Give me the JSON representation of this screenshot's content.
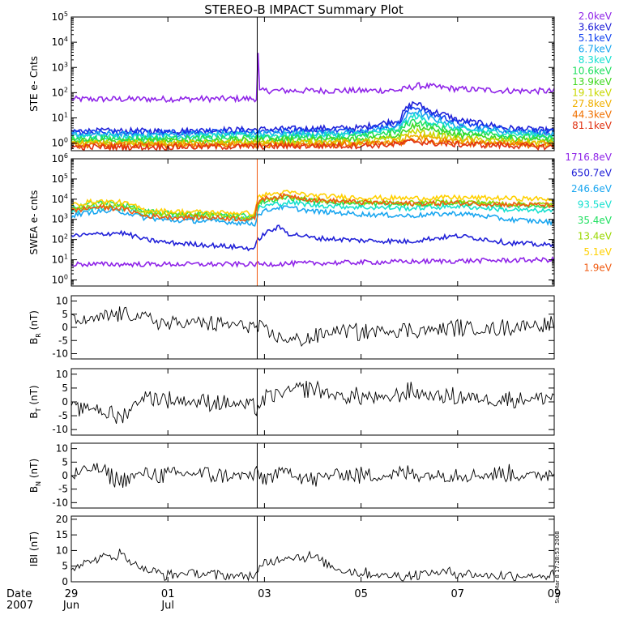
{
  "title": "STEREO-B IMPACT Summary Plot",
  "stamp": "Sun Mar  8 17:28:53 2008",
  "time_axis": {
    "date_label": "Date",
    "year_label": "2007",
    "ticks": [
      {
        "day": 29,
        "label": "29",
        "sub": "Jun"
      },
      {
        "day": 31,
        "label": "01",
        "sub": "Jul"
      },
      {
        "day": 33,
        "label": "03",
        "sub": ""
      },
      {
        "day": 35,
        "label": "05",
        "sub": ""
      },
      {
        "day": 37,
        "label": "07",
        "sub": ""
      },
      {
        "day": 39,
        "label": "09",
        "sub": ""
      }
    ],
    "range": [
      29,
      39
    ]
  },
  "chart_data": [
    {
      "type": "line",
      "ylabel": "STE e- Cnts",
      "yscale": "log",
      "ylim": [
        0.5,
        100000
      ],
      "yticks": [
        {
          "v": 1,
          "label": "10^0"
        },
        {
          "v": 10,
          "label": "10^1"
        },
        {
          "v": 100,
          "label": "10^2"
        },
        {
          "v": 1000,
          "label": "10^3"
        },
        {
          "v": 10000,
          "label": "10^4"
        },
        {
          "v": 100000,
          "label": "10^5"
        }
      ],
      "series": [
        {
          "name": "2.0keV",
          "color": "#8f24e8",
          "x": [
            29,
            31,
            32.85,
            32.86,
            32.9,
            33,
            35,
            35.8,
            36.2,
            37,
            38,
            39
          ],
          "y": [
            55,
            56,
            58,
            4000,
            110,
            120,
            120,
            125,
            190,
            140,
            120,
            115
          ]
        },
        {
          "name": "3.6keV",
          "color": "#2020d8",
          "x": [
            29,
            31,
            33,
            35,
            35.8,
            36.1,
            36.4,
            37,
            38,
            39
          ],
          "y": [
            3,
            3,
            3.5,
            4,
            8,
            40,
            20,
            8,
            4,
            3
          ]
        },
        {
          "name": "5.1keV",
          "color": "#1040f0",
          "x": [
            29,
            31,
            33,
            35,
            35.8,
            36.1,
            36.4,
            37,
            38,
            39
          ],
          "y": [
            2.6,
            2.6,
            3,
            3.2,
            6,
            28,
            15,
            6,
            3.5,
            2.6
          ]
        },
        {
          "name": "6.7keV",
          "color": "#19a6f0",
          "x": [
            29,
            31,
            33,
            35,
            35.8,
            36.1,
            36.4,
            37,
            38,
            39
          ],
          "y": [
            2.2,
            2.2,
            2.4,
            2.6,
            4.5,
            18,
            10,
            4.5,
            3,
            2.2
          ]
        },
        {
          "name": "8.3keV",
          "color": "#16e0d0",
          "x": [
            29,
            31,
            33,
            35,
            35.8,
            36.1,
            36.4,
            37,
            38,
            39
          ],
          "y": [
            1.8,
            1.8,
            2,
            2.2,
            3.5,
            12,
            7,
            3.5,
            2.5,
            1.8
          ]
        },
        {
          "name": "10.6keV",
          "color": "#20e060",
          "x": [
            29,
            31,
            33,
            35,
            35.8,
            36.1,
            36.4,
            37,
            38,
            39
          ],
          "y": [
            1.5,
            1.5,
            1.6,
            1.8,
            3,
            8,
            5,
            2.8,
            2,
            1.5
          ]
        },
        {
          "name": "13.9keV",
          "color": "#40d820",
          "x": [
            29,
            31,
            33,
            35,
            35.8,
            36.1,
            36.4,
            37,
            38,
            39
          ],
          "y": [
            1.2,
            1.2,
            1.3,
            1.4,
            2.2,
            5,
            3.5,
            2,
            1.6,
            1.2
          ]
        },
        {
          "name": "19.1keV",
          "color": "#c8d800",
          "x": [
            29,
            31,
            33,
            35,
            35.8,
            36.1,
            36.4,
            37,
            38,
            39
          ],
          "y": [
            1,
            1,
            1.05,
            1.1,
            1.6,
            3,
            2.2,
            1.5,
            1.2,
            1
          ]
        },
        {
          "name": "27.8keV",
          "color": "#f0b000",
          "x": [
            29,
            31,
            33,
            35,
            35.8,
            36.1,
            36.4,
            37,
            38,
            39
          ],
          "y": [
            0.9,
            0.9,
            0.95,
            1,
            1.2,
            2,
            1.6,
            1.2,
            1,
            0.9
          ]
        },
        {
          "name": "44.3keV",
          "color": "#f07000",
          "x": [
            29,
            31,
            33,
            35,
            35.8,
            36.1,
            36.4,
            37,
            38,
            39
          ],
          "y": [
            0.8,
            0.8,
            0.85,
            0.9,
            1,
            1.4,
            1.2,
            1,
            0.9,
            0.8
          ]
        },
        {
          "name": "81.1keV",
          "color": "#e03010",
          "x": [
            29,
            31,
            33,
            35,
            35.8,
            36.1,
            36.4,
            37,
            38,
            39
          ],
          "y": [
            0.7,
            0.7,
            0.75,
            0.8,
            0.9,
            1.2,
            1,
            0.9,
            0.8,
            0.7
          ]
        }
      ]
    },
    {
      "type": "line",
      "ylabel": "SWEA e- cnts",
      "yscale": "log",
      "ylim": [
        0.5,
        1000000
      ],
      "yticks": [
        {
          "v": 1,
          "label": "10^0"
        },
        {
          "v": 10,
          "label": "10^1"
        },
        {
          "v": 100,
          "label": "10^2"
        },
        {
          "v": 1000,
          "label": "10^3"
        },
        {
          "v": 10000,
          "label": "10^4"
        },
        {
          "v": 100000,
          "label": "10^5"
        },
        {
          "v": 1000000,
          "label": "10^6"
        }
      ],
      "series": [
        {
          "name": "1716.8eV",
          "color": "#8f24e8",
          "x": [
            29,
            32.8,
            32.85,
            39
          ],
          "y": [
            6,
            6,
            6,
            10
          ]
        },
        {
          "name": "650.7eV",
          "color": "#2020d8",
          "x": [
            29,
            29.5,
            30,
            30.5,
            31,
            32,
            32.8,
            32.9,
            33.3,
            33.5,
            34,
            35,
            36,
            37,
            38,
            39
          ],
          "y": [
            150,
            180,
            220,
            100,
            70,
            50,
            35,
            120,
            400,
            200,
            120,
            90,
            80,
            150,
            70,
            50
          ]
        },
        {
          "name": "246.6eV",
          "color": "#19a6f0",
          "x": [
            29,
            29.5,
            30,
            30.5,
            31,
            32,
            32.8,
            32.9,
            33.3,
            33.6,
            34,
            35,
            36,
            37,
            38,
            39
          ],
          "y": [
            1500,
            2500,
            2500,
            1200,
            900,
            800,
            600,
            2000,
            4000,
            3500,
            2500,
            1800,
            1500,
            2000,
            1000,
            700
          ]
        },
        {
          "name": "93.5eV",
          "color": "#16e0d0",
          "x": [
            29,
            29.5,
            30,
            30.5,
            31,
            32,
            32.8,
            32.9,
            33.5,
            34,
            35,
            36,
            37,
            38,
            39
          ],
          "y": [
            2500,
            4000,
            3500,
            1800,
            1500,
            1300,
            1000,
            4000,
            7000,
            5000,
            4000,
            3500,
            4500,
            3000,
            2500
          ]
        },
        {
          "name": "35.4eV",
          "color": "#20e060",
          "x": [
            29,
            29.5,
            30,
            30.5,
            31,
            32,
            32.8,
            32.9,
            33.5,
            34,
            35,
            36,
            37,
            38,
            39
          ],
          "y": [
            4000,
            7000,
            6000,
            2500,
            2000,
            1800,
            1500,
            7000,
            12000,
            8000,
            6000,
            5500,
            6500,
            5000,
            4500
          ]
        },
        {
          "name": "13.4eV",
          "color": "#9ad800",
          "x": [
            29,
            29.5,
            30,
            30.5,
            31,
            32,
            32.8,
            32.9,
            33.5,
            34,
            35,
            36,
            37,
            38,
            39
          ],
          "y": [
            3000,
            5000,
            4500,
            2000,
            1700,
            1500,
            1200,
            8000,
            14000,
            9000,
            7000,
            6500,
            7500,
            6000,
            5500
          ]
        },
        {
          "name": "5.1eV",
          "color": "#ffd000",
          "x": [
            29,
            29.5,
            30,
            30.5,
            31,
            32,
            32.8,
            32.9,
            33.5,
            34,
            35,
            36,
            37,
            38,
            39
          ],
          "y": [
            5000,
            8000,
            7000,
            3000,
            2500,
            2200,
            2000,
            15000,
            22000,
            15000,
            12000,
            11000,
            12000,
            11000,
            10000
          ]
        },
        {
          "name": "1.9eV",
          "color": "#f05a10",
          "x": [
            29,
            29.5,
            30,
            30.5,
            31,
            32,
            32.8,
            32.9,
            33.5,
            34,
            35,
            36,
            37,
            38,
            39
          ],
          "y": [
            2500,
            4000,
            3500,
            1500,
            1300,
            1200,
            1000,
            10000,
            15000,
            9000,
            7000,
            6000,
            6500,
            5500,
            5000
          ]
        }
      ]
    },
    {
      "type": "line",
      "ylabel": "B_R (nT)",
      "ylim": [
        -12,
        12
      ],
      "yticks": [
        {
          "v": 10,
          "label": "10"
        },
        {
          "v": 5,
          "label": "5"
        },
        {
          "v": 0,
          "label": "0"
        },
        {
          "v": -5,
          "label": "-5"
        },
        {
          "v": -10,
          "label": "-10"
        }
      ],
      "series": [
        {
          "color": "#000000",
          "x": [
            29,
            29.5,
            30,
            30.5,
            31,
            31.5,
            32,
            32.5,
            32.85,
            33,
            33.5,
            34,
            34.5,
            35,
            35.5,
            36,
            36.5,
            37,
            37.5,
            38,
            38.5,
            39
          ],
          "y": [
            2,
            3,
            5,
            4,
            1,
            2,
            1,
            1,
            0,
            -2,
            -5,
            -4,
            -1,
            -2,
            -1,
            -1,
            -1,
            0,
            -1,
            0,
            1,
            1
          ]
        }
      ]
    },
    {
      "type": "line",
      "ylabel": "B_T (nT)",
      "ylim": [
        -12,
        12
      ],
      "yticks": [
        {
          "v": 10,
          "label": "10"
        },
        {
          "v": 5,
          "label": "5"
        },
        {
          "v": 0,
          "label": "0"
        },
        {
          "v": -5,
          "label": "-5"
        },
        {
          "v": -10,
          "label": "-10"
        }
      ],
      "series": [
        {
          "color": "#000000",
          "x": [
            29,
            29.5,
            30,
            30.5,
            31,
            31.5,
            32,
            32.5,
            32.85,
            33,
            33.5,
            34,
            34.5,
            35,
            35.5,
            36,
            36.5,
            37,
            37.5,
            38,
            38.5,
            39
          ],
          "y": [
            -3,
            -2,
            -6,
            2,
            1,
            0,
            0,
            -1,
            -2,
            1,
            4,
            5,
            2,
            2,
            1,
            4,
            2,
            2,
            1,
            1,
            1,
            2
          ]
        }
      ]
    },
    {
      "type": "line",
      "ylabel": "B_N (nT)",
      "ylim": [
        -12,
        12
      ],
      "yticks": [
        {
          "v": 10,
          "label": "10"
        },
        {
          "v": 5,
          "label": "5"
        },
        {
          "v": 0,
          "label": "0"
        },
        {
          "v": -5,
          "label": "-5"
        },
        {
          "v": -10,
          "label": "-10"
        }
      ],
      "series": [
        {
          "color": "#000000",
          "x": [
            29,
            29.5,
            30,
            30.5,
            31,
            31.5,
            32,
            32.5,
            32.85,
            33,
            33.5,
            34,
            34.5,
            35,
            35.5,
            36,
            36.5,
            37,
            37.5,
            38,
            38.5,
            39
          ],
          "y": [
            0,
            3,
            -2,
            1,
            0,
            1,
            0,
            0,
            0,
            -1,
            2,
            -2,
            1,
            0,
            0,
            1,
            0,
            1,
            0,
            1,
            0,
            1
          ]
        }
      ]
    },
    {
      "type": "line",
      "ylabel": "IBI (nT)",
      "ylim": [
        0,
        21
      ],
      "yticks": [
        {
          "v": 20,
          "label": "20"
        },
        {
          "v": 15,
          "label": "15"
        },
        {
          "v": 10,
          "label": "10"
        },
        {
          "v": 5,
          "label": "5"
        },
        {
          "v": 0,
          "label": "0"
        }
      ],
      "series": [
        {
          "color": "#000000",
          "x": [
            29,
            29.5,
            30,
            30.5,
            31,
            31.5,
            32,
            32.5,
            32.85,
            33,
            33.5,
            34,
            34.5,
            35,
            35.5,
            36,
            36.5,
            37,
            37.5,
            38,
            38.5,
            39
          ],
          "y": [
            5,
            7,
            9,
            4,
            2,
            3,
            2,
            2,
            2,
            6,
            8,
            8,
            4,
            3,
            2,
            2,
            3,
            3,
            2,
            2,
            2,
            2
          ]
        }
      ]
    }
  ]
}
